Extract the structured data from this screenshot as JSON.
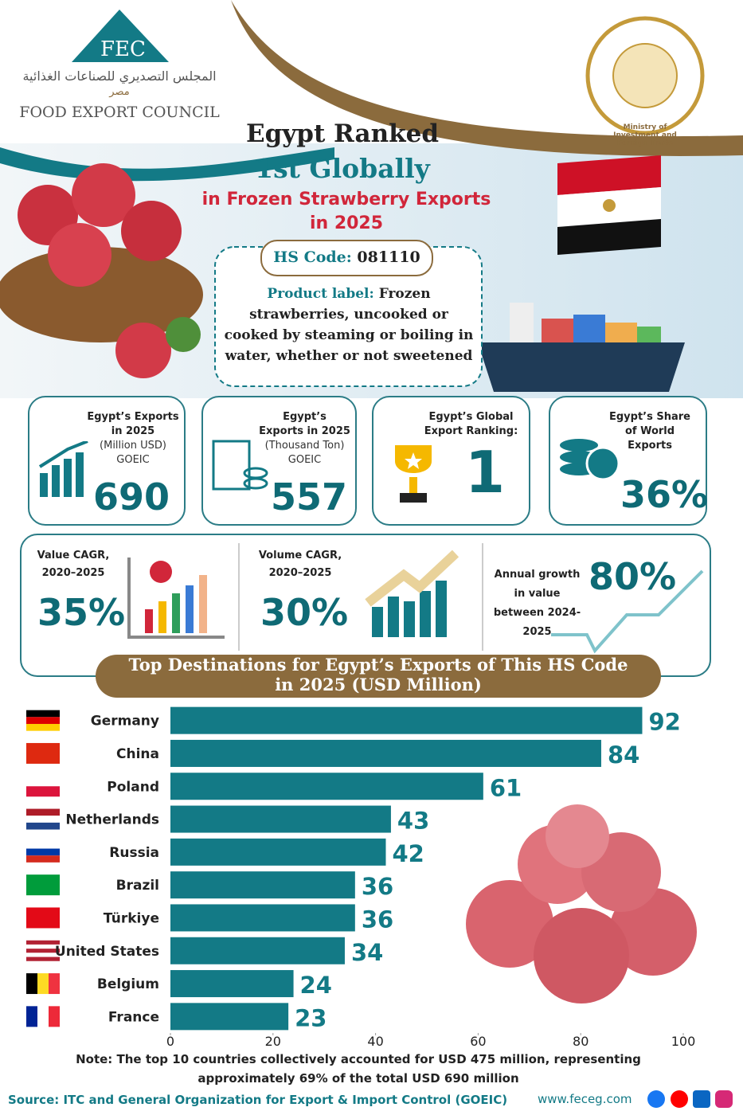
{
  "header": {
    "logo": "FEC",
    "org_arabic": "المجلس التصديري للصناعات الغذائية",
    "org_arabic_sub": "مصر",
    "org_name": "FOOD EXPORT COUNCIL",
    "ministry": "Ministry of Investment and Foreign Trade",
    "title_line1": "Egypt Ranked",
    "title_line2": "1st Globally",
    "title_line3": "in Frozen Strawberry Exports",
    "title_line4": "in 2025"
  },
  "product": {
    "hs_label": "HS Code:",
    "hs_code": "081110",
    "label_title": "Product label:",
    "label_text": "Frozen strawberries, uncooked or cooked by steaming or boiling in water, whether or not sweetened"
  },
  "stats": [
    {
      "title": "Egypt’s Exports in 2025",
      "detail": "(Million USD)",
      "source": "GOEIC",
      "value": "690"
    },
    {
      "title": "Egypt’s Exports in 2025",
      "detail": "(Thousand Ton)",
      "source": "GOEIC",
      "value": "557"
    },
    {
      "title": "Egypt’s Global Export Ranking:",
      "value": "1"
    },
    {
      "title": "Egypt’s Share of World Exports",
      "value": "36%"
    }
  ],
  "growth": [
    {
      "title": "Value CAGR, 2020–2025",
      "value": "35%"
    },
    {
      "title": "Volume CAGR, 2020–2025",
      "value": "30%"
    },
    {
      "title": "Annual growth in value between 2024-2025",
      "value": "80%"
    }
  ],
  "chart_data": {
    "type": "bar",
    "orientation": "horizontal",
    "title": "Top Destinations for Egypt’s Exports of  This HS Code in 2025 (USD Million)",
    "categories": [
      "Germany",
      "China",
      "Poland",
      "Netherlands",
      "Russia",
      "Brazil",
      "Türkiye",
      "United States",
      "Belgium",
      "France"
    ],
    "values": [
      92,
      84,
      61,
      43,
      42,
      36,
      36,
      34,
      24,
      23
    ],
    "color": "#137a86",
    "xlim": [
      0,
      100
    ],
    "xticks": [
      0,
      20,
      40,
      60,
      80,
      100
    ]
  },
  "note": "Note: The top 10 countries collectively accounted for USD 475 million, representing approximately 69% of the total USD 690 million",
  "footer": {
    "source": "Source: ITC and General Organization for Export & Import Control (GOEIC)",
    "website": "www.feceg.com"
  }
}
